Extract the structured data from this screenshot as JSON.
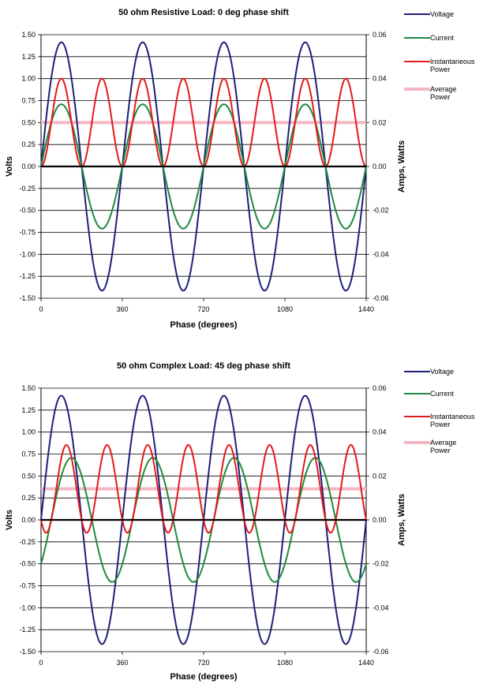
{
  "colors": {
    "voltage": "#1f1f7a",
    "current": "#1e8a3c",
    "inst_power": "#e31a1c",
    "avg_power": "#f4b6c2",
    "grid": "#000000"
  },
  "chart_data": [
    {
      "type": "line",
      "title": "50 ohm Resistive Load: 0 deg phase shift",
      "xlabel": "Phase (degrees)",
      "ylabel": "Volts",
      "y2label": "Amps, Watts",
      "xlim": [
        0,
        1440
      ],
      "ylim": [
        -1.5,
        1.5
      ],
      "y2lim": [
        -0.06,
        0.06
      ],
      "x_ticks": [
        "0",
        "360",
        "720",
        "1080",
        "1440"
      ],
      "y_ticks": [
        "1.50",
        "1.25",
        "1.00",
        "0.75",
        "0.50",
        "0.25",
        "0.00",
        "-0.25",
        "-0.50",
        "-0.75",
        "-1.00",
        "-1.25",
        "-1.50"
      ],
      "y2_ticks": [
        "0.06",
        "0.04",
        "0.02",
        "0.00",
        "-0.02",
        "-0.04",
        "-0.06"
      ],
      "grid": true,
      "legend_position": "right",
      "series": [
        {
          "name": "Voltage",
          "axis": "left",
          "function": "sine",
          "amplitude": 1.414,
          "phase_deg": 0
        },
        {
          "name": "Current",
          "axis": "right",
          "function": "sine",
          "amplitude": 0.0283,
          "phase_deg": 0
        },
        {
          "name": "Instantaneous Power",
          "axis": "right",
          "function": "power",
          "amplitude": 0.04,
          "phase_deg": 0
        },
        {
          "name": "Average Power",
          "axis": "right",
          "function": "constant",
          "value": 0.02
        }
      ]
    },
    {
      "type": "line",
      "title": "50 ohm Complex Load: 45 deg phase shift",
      "xlabel": "Phase (degrees)",
      "ylabel": "Volts",
      "y2label": "Amps, Watts",
      "xlim": [
        0,
        1440
      ],
      "ylim": [
        -1.5,
        1.5
      ],
      "y2lim": [
        -0.06,
        0.06
      ],
      "x_ticks": [
        "0",
        "360",
        "720",
        "1080",
        "1440"
      ],
      "y_ticks": [
        "1.50",
        "1.25",
        "1.00",
        "0.75",
        "0.50",
        "0.25",
        "0.00",
        "-0.25",
        "-0.50",
        "-0.75",
        "-1.00",
        "-1.25",
        "-1.50"
      ],
      "y2_ticks": [
        "0.06",
        "0.04",
        "0.02",
        "0.00",
        "-0.02",
        "-0.04",
        "-0.06"
      ],
      "grid": true,
      "legend_position": "right",
      "series": [
        {
          "name": "Voltage",
          "axis": "left",
          "function": "sine",
          "amplitude": 1.414,
          "phase_deg": 0
        },
        {
          "name": "Current",
          "axis": "right",
          "function": "sine",
          "amplitude": 0.0283,
          "phase_deg": -45
        },
        {
          "name": "Instantaneous Power",
          "axis": "right",
          "function": "power",
          "amplitude": 0.04,
          "phase_deg": -45
        },
        {
          "name": "Average Power",
          "axis": "right",
          "function": "constant",
          "value": 0.01414
        }
      ]
    }
  ],
  "legend": {
    "voltage": "Voltage",
    "current": "Current",
    "inst_line1": "Instantaneous",
    "inst_line2": "Power",
    "avg_line1": "Average",
    "avg_line2": "Power"
  }
}
